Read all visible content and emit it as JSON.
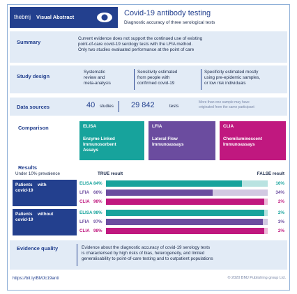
{
  "header": {
    "brand": "thebmj",
    "tag": "Visual Abstract",
    "title": "Covid-19 antibody testing",
    "subtitle": "Diagnostic accuracy of three serological tests"
  },
  "summary": {
    "label": "Summary",
    "lines": [
      "Current evidence does not support the continued use of existing",
      "point-of-care covid-19 serology tests with the LFIA method.",
      "Only two studies evaluated performance at the point of care"
    ]
  },
  "study_design": {
    "label": "Study design",
    "columns": [
      [
        "Systematic",
        "review and",
        "meta-analysis"
      ],
      [
        "Sensitivity estimated",
        "from people with",
        "confirmed covid-19"
      ],
      [
        "Specificity estimated mostly",
        "using pre-epidemic samples,",
        "or low risk individuals"
      ]
    ]
  },
  "data_sources": {
    "label": "Data sources",
    "studies": "40",
    "studies_label": "studies",
    "tests": "29 842",
    "tests_label": "tests",
    "note": [
      "More than one sample may have",
      "originated from the same participant"
    ]
  },
  "comparison": {
    "label": "Comparison",
    "methods": [
      {
        "name": "ELISA",
        "color": "#17a39c",
        "lines": [
          "Enzyme Linked",
          "Immunosorbent",
          "Assays"
        ]
      },
      {
        "name": "LFIA",
        "color": "#6b4c9f",
        "lines": [
          "Lateral Flow",
          "Immunoassays"
        ]
      },
      {
        "name": "CLIA",
        "color": "#c0187f",
        "lines": [
          "Chemiluminescent",
          "Immunoassays"
        ]
      }
    ]
  },
  "results": {
    "label": "Results",
    "prevalence": "Under 10% prevalence",
    "true_header": "TRUE result",
    "false_header": "FALSE result",
    "groups": [
      {
        "label": [
          "Patients",
          "with",
          "covid-19"
        ],
        "rows": [
          {
            "method": "ELISA",
            "true": 84,
            "true_label": "84%",
            "false": 16,
            "false_label": "16%"
          },
          {
            "method": "LFIA",
            "true": 66,
            "true_label": "66%",
            "false": 34,
            "false_label": "34%"
          },
          {
            "method": "CLIA",
            "true": 98,
            "true_label": "98%",
            "false": 2,
            "false_label": "2%"
          }
        ]
      },
      {
        "label": [
          "Patients",
          "without",
          "covid-19"
        ],
        "rows": [
          {
            "method": "ELISA",
            "true": 98,
            "true_label": "98%",
            "false": 2,
            "false_label": "2%"
          },
          {
            "method": "LFIA",
            "true": 97,
            "true_label": "97%",
            "false": 3,
            "false_label": "3%"
          },
          {
            "method": "CLIA",
            "true": 98,
            "true_label": "98%",
            "false": 2,
            "false_label": "2%"
          }
        ]
      }
    ]
  },
  "evidence_quality": {
    "label": "Evidence quality",
    "lines": [
      "Evidence about the diagnostic accuracy of covid-19 serology tests",
      "is characterised by high risks of bias, heterogeneity, and limited",
      "generalisability to point-of-care testing and to outpatient populations"
    ]
  },
  "footer": {
    "link": "https://bit.ly/BMJc19anti",
    "copyright": "© 2020 BMJ Publishing group Ltd."
  }
}
